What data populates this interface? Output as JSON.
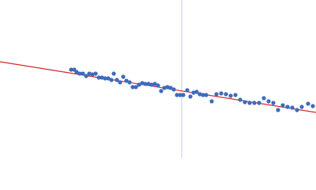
{
  "chart_data": {
    "type": "scatter",
    "x": [
      90,
      94,
      97,
      101,
      105,
      109,
      113,
      117,
      121,
      125,
      129,
      133,
      137,
      141,
      144,
      148,
      152,
      156,
      160,
      164,
      168,
      172,
      176,
      180,
      184,
      188,
      192,
      196,
      200,
      204,
      208,
      212,
      216,
      220,
      224,
      228,
      232,
      237,
      241,
      245,
      249,
      253,
      257,
      261,
      268,
      274,
      280,
      286,
      292,
      298,
      304,
      310,
      316,
      322,
      328,
      334,
      340,
      346,
      352,
      358,
      364,
      370,
      376,
      382,
      390,
      396
    ],
    "y": [
      112,
      112,
      109,
      107,
      107,
      104,
      107,
      106,
      107,
      102,
      102,
      101,
      101,
      99,
      107,
      99,
      96,
      103,
      98,
      96,
      90,
      90,
      93,
      95,
      94,
      94,
      93,
      94,
      92,
      85,
      89,
      90,
      89,
      87,
      80,
      80,
      80,
      86,
      78,
      83,
      84,
      81,
      80,
      80,
      72,
      81,
      82,
      81,
      79,
      80,
      74,
      71,
      70,
      70,
      70,
      76,
      72,
      70,
      61,
      67,
      65,
      64,
      61,
      65,
      69,
      66
    ],
    "color": "#3d6bbd",
    "fit_line": {
      "x": [
        0,
        400
      ],
      "y": [
        122,
        58
      ],
      "color": "#d62728"
    },
    "vline": {
      "x": 230,
      "color": "#c6cde6"
    },
    "xlim": [
      0,
      400
    ],
    "ylim": [
      0,
      200
    ]
  }
}
